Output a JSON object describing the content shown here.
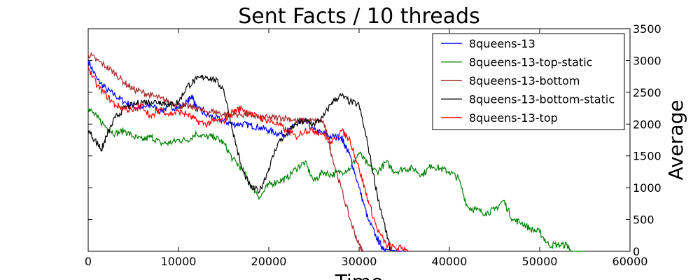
{
  "chart_data": {
    "type": "line",
    "title": "Sent Facts / 10 threads",
    "xlabel": "Time",
    "ylabel": "Average",
    "xlim": [
      0,
      60000
    ],
    "ylim": [
      0,
      3500
    ],
    "xticks": [
      0,
      10000,
      20000,
      30000,
      40000,
      50000,
      60000
    ],
    "yticks": [
      0,
      500,
      1000,
      1500,
      2000,
      2500,
      3000,
      3500
    ],
    "y_axis_side": "right",
    "grid": false,
    "legend_position": "top-right",
    "series": [
      {
        "name": "8queens-13",
        "color": "#0000ff",
        "points": [
          [
            0,
            3000
          ],
          [
            1000,
            2700
          ],
          [
            2000,
            2550
          ],
          [
            3000,
            2450
          ],
          [
            4000,
            2350
          ],
          [
            5000,
            2280
          ],
          [
            6000,
            2250
          ],
          [
            7000,
            2300
          ],
          [
            8000,
            2200
          ],
          [
            9000,
            2280
          ],
          [
            10000,
            2250
          ],
          [
            11000,
            2350
          ],
          [
            11500,
            2450
          ],
          [
            12000,
            2250
          ],
          [
            13000,
            2150
          ],
          [
            14000,
            2100
          ],
          [
            15000,
            2050
          ],
          [
            16000,
            2000
          ],
          [
            17000,
            2000
          ],
          [
            18000,
            1980
          ],
          [
            19000,
            1950
          ],
          [
            20000,
            1900
          ],
          [
            21000,
            1850
          ],
          [
            22000,
            1850
          ],
          [
            23000,
            2000
          ],
          [
            24000,
            2050
          ],
          [
            25000,
            1900
          ],
          [
            26000,
            1850
          ],
          [
            27000,
            1800
          ],
          [
            28000,
            1800
          ],
          [
            28500,
            1650
          ],
          [
            29000,
            1500
          ],
          [
            30000,
            1000
          ],
          [
            31000,
            500
          ],
          [
            32000,
            200
          ],
          [
            32500,
            80
          ],
          [
            33000,
            30
          ],
          [
            34000,
            10
          ],
          [
            35000,
            0
          ]
        ]
      },
      {
        "name": "8queens-13-top-static",
        "color": "#008000",
        "points": [
          [
            0,
            2250
          ],
          [
            1000,
            2100
          ],
          [
            2000,
            1950
          ],
          [
            3000,
            1850
          ],
          [
            4000,
            1900
          ],
          [
            5000,
            1800
          ],
          [
            6000,
            1750
          ],
          [
            7000,
            1800
          ],
          [
            8000,
            1700
          ],
          [
            9000,
            1700
          ],
          [
            10000,
            1750
          ],
          [
            11000,
            1750
          ],
          [
            12000,
            1850
          ],
          [
            13000,
            1800
          ],
          [
            14000,
            1800
          ],
          [
            15000,
            1700
          ],
          [
            16000,
            1450
          ],
          [
            17000,
            1300
          ],
          [
            18000,
            1050
          ],
          [
            19000,
            850
          ],
          [
            20000,
            1050
          ],
          [
            21000,
            1100
          ],
          [
            22000,
            1150
          ],
          [
            23000,
            1300
          ],
          [
            24000,
            1400
          ],
          [
            25000,
            1100
          ],
          [
            26000,
            1250
          ],
          [
            27000,
            1200
          ],
          [
            28000,
            1250
          ],
          [
            29000,
            1300
          ],
          [
            30000,
            1550
          ],
          [
            31000,
            1350
          ],
          [
            32000,
            1250
          ],
          [
            33000,
            1400
          ],
          [
            34000,
            1250
          ],
          [
            35000,
            1300
          ],
          [
            36000,
            1300
          ],
          [
            37000,
            1200
          ],
          [
            38000,
            1350
          ],
          [
            39000,
            1300
          ],
          [
            40000,
            1250
          ],
          [
            41000,
            1150
          ],
          [
            42000,
            700
          ],
          [
            43000,
            650
          ],
          [
            44000,
            600
          ],
          [
            45000,
            650
          ],
          [
            46000,
            800
          ],
          [
            47000,
            500
          ],
          [
            48000,
            450
          ],
          [
            49000,
            350
          ],
          [
            50000,
            300
          ],
          [
            51000,
            100
          ],
          [
            52000,
            100
          ],
          [
            53000,
            100
          ],
          [
            53500,
            0
          ],
          [
            55000,
            0
          ]
        ]
      },
      {
        "name": "8queens-13-bottom",
        "color": "#a52a2a",
        "points": [
          [
            0,
            3100
          ],
          [
            1000,
            3000
          ],
          [
            2000,
            2900
          ],
          [
            3000,
            2800
          ],
          [
            4000,
            2650
          ],
          [
            5000,
            2550
          ],
          [
            6000,
            2500
          ],
          [
            7000,
            2450
          ],
          [
            8000,
            2400
          ],
          [
            9000,
            2350
          ],
          [
            10000,
            2300
          ],
          [
            11000,
            2280
          ],
          [
            12000,
            2250
          ],
          [
            13000,
            2200
          ],
          [
            14000,
            2200
          ],
          [
            15000,
            2150
          ],
          [
            16000,
            2150
          ],
          [
            17000,
            2150
          ],
          [
            18000,
            2150
          ],
          [
            19000,
            2100
          ],
          [
            20000,
            2100
          ],
          [
            21000,
            2100
          ],
          [
            22000,
            2100
          ],
          [
            23000,
            2050
          ],
          [
            24000,
            2050
          ],
          [
            25000,
            2050
          ],
          [
            26000,
            2050
          ],
          [
            26500,
            1800
          ],
          [
            27000,
            1500
          ],
          [
            28000,
            1000
          ],
          [
            29000,
            500
          ],
          [
            30000,
            100
          ],
          [
            30500,
            0
          ]
        ]
      },
      {
        "name": "8queens-13-bottom-static",
        "color": "#000000",
        "points": [
          [
            0,
            1900
          ],
          [
            1000,
            1700
          ],
          [
            1500,
            1600
          ],
          [
            2000,
            1800
          ],
          [
            3000,
            2100
          ],
          [
            4000,
            2250
          ],
          [
            5000,
            2300
          ],
          [
            6000,
            2350
          ],
          [
            7000,
            2350
          ],
          [
            8000,
            2350
          ],
          [
            9000,
            2300
          ],
          [
            10000,
            2350
          ],
          [
            11000,
            2600
          ],
          [
            12000,
            2700
          ],
          [
            13000,
            2750
          ],
          [
            14000,
            2700
          ],
          [
            15000,
            2550
          ],
          [
            16000,
            1900
          ],
          [
            17000,
            1300
          ],
          [
            18000,
            1000
          ],
          [
            19000,
            950
          ],
          [
            20000,
            1300
          ],
          [
            21000,
            1700
          ],
          [
            22000,
            1850
          ],
          [
            23000,
            2000
          ],
          [
            24000,
            2050
          ],
          [
            25000,
            2000
          ],
          [
            26000,
            2100
          ],
          [
            27000,
            2350
          ],
          [
            28000,
            2450
          ],
          [
            29000,
            2350
          ],
          [
            30000,
            2300
          ],
          [
            31000,
            1650
          ],
          [
            32000,
            900
          ],
          [
            33000,
            300
          ],
          [
            33500,
            0
          ]
        ]
      },
      {
        "name": "8queens-13-top",
        "color": "#ff0000",
        "points": [
          [
            0,
            2900
          ],
          [
            1000,
            2600
          ],
          [
            2000,
            2450
          ],
          [
            3000,
            2300
          ],
          [
            4000,
            2250
          ],
          [
            5000,
            2200
          ],
          [
            6000,
            2300
          ],
          [
            7000,
            2100
          ],
          [
            8000,
            2250
          ],
          [
            9000,
            2150
          ],
          [
            10000,
            2200
          ],
          [
            11000,
            2150
          ],
          [
            12000,
            2050
          ],
          [
            13000,
            2000
          ],
          [
            14000,
            2050
          ],
          [
            15000,
            2050
          ],
          [
            16000,
            2200
          ],
          [
            17000,
            2250
          ],
          [
            18000,
            2150
          ],
          [
            19000,
            2100
          ],
          [
            20000,
            2050
          ],
          [
            21000,
            2000
          ],
          [
            22000,
            1900
          ],
          [
            23000,
            1800
          ],
          [
            24000,
            1900
          ],
          [
            25000,
            1900
          ],
          [
            26000,
            1850
          ],
          [
            27000,
            1700
          ],
          [
            28000,
            1900
          ],
          [
            29000,
            1750
          ],
          [
            30000,
            1300
          ],
          [
            31000,
            800
          ],
          [
            32000,
            350
          ],
          [
            33000,
            100
          ],
          [
            34000,
            50
          ],
          [
            35000,
            50
          ],
          [
            35500,
            0
          ]
        ]
      }
    ]
  }
}
